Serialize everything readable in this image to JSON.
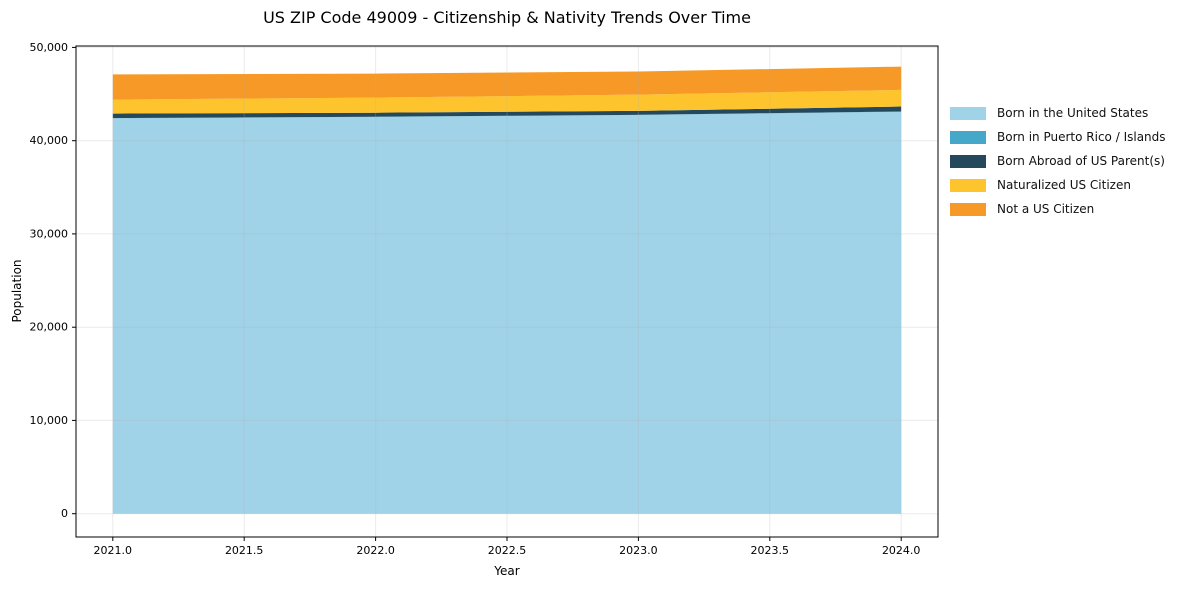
{
  "chart": {
    "title": "US ZIP Code 49009 - Citizenship & Nativity Trends Over Time",
    "xlabel": "Year",
    "ylabel": "Population"
  },
  "chart_data": {
    "type": "area",
    "stacked": true,
    "title": "US ZIP Code 49009 - Citizenship & Nativity Trends Over Time",
    "xlabel": "Year",
    "ylabel": "Population",
    "x": [
      2021,
      2022,
      2023,
      2024
    ],
    "series": [
      {
        "name": "Born in the United States",
        "color": "#A0D2E8",
        "values": [
          42400,
          42550,
          42750,
          43100
        ]
      },
      {
        "name": "Born in Puerto Rico / Islands",
        "color": "#46A8C8",
        "values": [
          20,
          20,
          20,
          25
        ]
      },
      {
        "name": "Born Abroad of US Parent(s)",
        "color": "#24495C",
        "values": [
          480,
          430,
          420,
          540
        ]
      },
      {
        "name": "Naturalized US Citizen",
        "color": "#FDC42E",
        "values": [
          1500,
          1620,
          1750,
          1780
        ]
      },
      {
        "name": "Not a US Citizen",
        "color": "#F79927",
        "values": [
          2700,
          2570,
          2480,
          2500
        ]
      }
    ],
    "totals": [
      47100,
      47190,
      47420,
      47945
    ],
    "x_ticks": [
      2021.0,
      2021.5,
      2022.0,
      2022.5,
      2023.0,
      2023.5,
      2024.0
    ],
    "x_tick_labels": [
      "2021.0",
      "2021.5",
      "2022.0",
      "2022.5",
      "2023.0",
      "2023.5",
      "2024.0"
    ],
    "y_ticks": [
      0,
      10000,
      20000,
      30000,
      40000,
      50000
    ],
    "y_tick_labels": [
      "0",
      "10,000",
      "20,000",
      "30,000",
      "40,000",
      "50,000"
    ],
    "xlim": [
      2020.86,
      2024.14
    ],
    "ylim": [
      -2500,
      50150
    ],
    "grid": true,
    "grid_color": "#b0b0b0",
    "frame_color": "#000000",
    "legend_position": "right-outside"
  }
}
